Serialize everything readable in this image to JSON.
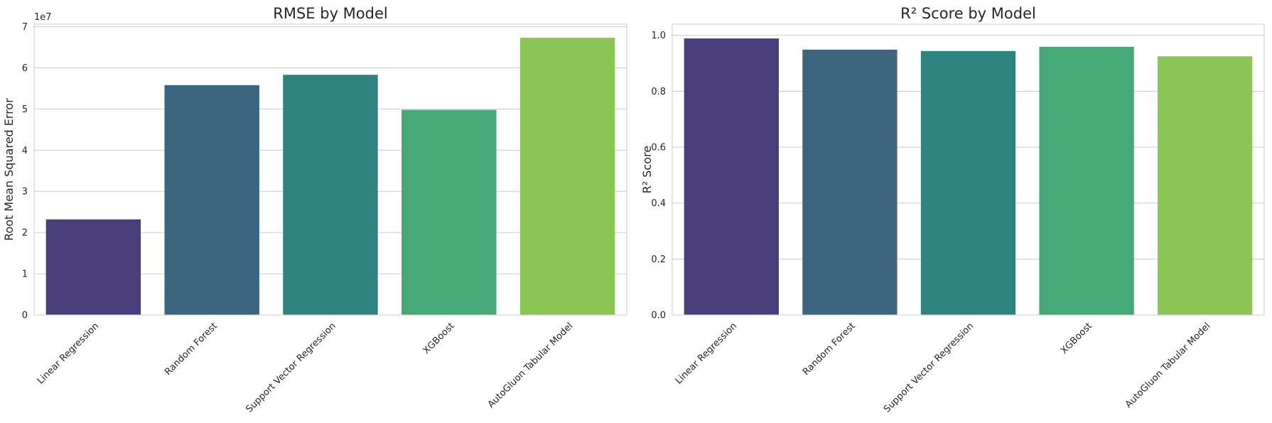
{
  "chart_data": [
    {
      "type": "bar",
      "title": "RMSE by Model",
      "xlabel": "",
      "ylabel": "Root Mean Squared Error",
      "y_offset_label": "1e7",
      "categories": [
        "Linear Regression",
        "Random Forest",
        "Support Vector Regression",
        "XGBoost",
        "AutoGluon Tabular Model"
      ],
      "values": [
        23200000,
        55800000,
        58300000,
        49800000,
        67300000
      ],
      "ylim": [
        0,
        70600000
      ],
      "yticks": [
        0,
        10000000,
        20000000,
        30000000,
        40000000,
        50000000,
        60000000,
        70000000
      ],
      "ytick_labels": [
        "0",
        "1",
        "2",
        "3",
        "4",
        "5",
        "6",
        "7"
      ],
      "colors": [
        "#4a3f7a",
        "#3d6580",
        "#2e837e",
        "#46a877",
        "#8dc556"
      ],
      "grid": "y",
      "legend": "none"
    },
    {
      "type": "bar",
      "title": "R² Score by Model",
      "xlabel": "",
      "ylabel": "R² Score",
      "categories": [
        "Linear Regression",
        "Random Forest",
        "Support Vector Regression",
        "XGBoost",
        "AutoGluon Tabular Model"
      ],
      "values": [
        0.989,
        0.949,
        0.944,
        0.959,
        0.925
      ],
      "ylim": [
        0,
        1.04
      ],
      "yticks": [
        0,
        0.2,
        0.4,
        0.6,
        0.8,
        1.0
      ],
      "ytick_labels": [
        "0.0",
        "0.2",
        "0.4",
        "0.6",
        "0.8",
        "1.0"
      ],
      "colors": [
        "#4a3f7a",
        "#3d6580",
        "#2e837e",
        "#46a877",
        "#8dc556"
      ],
      "grid": "y",
      "legend": "none"
    }
  ]
}
